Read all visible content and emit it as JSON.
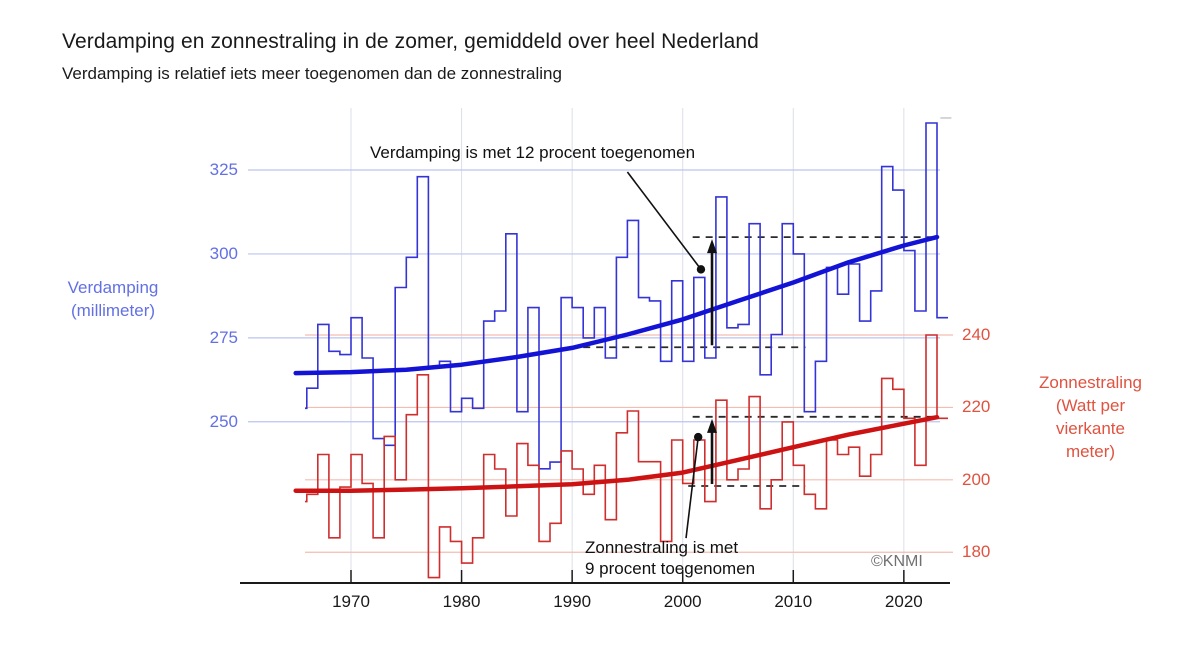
{
  "title": "Verdamping en zonnestraling in de zomer, gemiddeld over heel Nederland",
  "subtitle": "Verdamping is relatief iets meer toegenomen dan de zonnestraling",
  "watermark": "©KNMI",
  "left_axis": {
    "label_lines": [
      "Verdamping",
      "(millimeter)"
    ],
    "ticks": [
      325,
      300,
      275,
      250
    ],
    "color": "#6270e4",
    "gridline_color": "#bcc4f0"
  },
  "right_axis": {
    "label_lines": [
      "Zonnestraling",
      "(Watt per",
      "vierkante",
      "meter)"
    ],
    "ticks": [
      240,
      220,
      200,
      180
    ],
    "color": "#df5340",
    "gridline_color": "#f3bdb1"
  },
  "x_axis": {
    "ticks": [
      1970,
      1980,
      1990,
      2000,
      2010,
      2020
    ],
    "color": "#1a1a1a",
    "gridline_color": "#dcdfe8"
  },
  "annotations": {
    "verdamping_text": "Verdamping is met 12 procent toegenomen",
    "zonnestraling_line1": "Zonnestraling is met",
    "zonnestraling_line2": "9 procent toegenomen"
  },
  "chart_data": {
    "type": "line",
    "subtype": "step-series-with-smoothed-trend",
    "start_year": 1965,
    "end_year": 2023,
    "left_ylabel": "Verdamping (millimeter)",
    "right_ylabel": "Zonnestraling (Watt per vierkante meter)",
    "left_ylim": [
      236,
      342
    ],
    "right_ylim": [
      170,
      245
    ],
    "grid": true,
    "series": [
      {
        "name": "verdamping-jaarlijks",
        "axis": "left",
        "style": "step",
        "color": "#3434d6",
        "width": 1.6,
        "values": [
          254,
          260,
          279,
          271,
          270,
          281,
          269,
          245,
          243,
          290,
          299,
          323,
          266,
          268,
          253,
          257,
          254,
          280,
          283,
          306,
          253,
          284,
          236,
          238,
          287,
          284,
          275,
          284,
          269,
          299,
          310,
          287,
          286,
          268,
          292,
          268,
          293,
          269,
          317,
          278,
          279,
          309,
          264,
          276,
          309,
          300,
          253,
          268,
          296,
          288,
          297,
          280,
          289,
          326,
          319,
          301,
          283,
          339,
          281
        ]
      },
      {
        "name": "verdamping-trend",
        "axis": "left",
        "style": "smooth",
        "color": "#1313d6",
        "width": 4.5,
        "points": [
          [
            1965,
            264.5
          ],
          [
            1970,
            264.8
          ],
          [
            1975,
            265.5
          ],
          [
            1980,
            267
          ],
          [
            1985,
            269.3
          ],
          [
            1990,
            272
          ],
          [
            1995,
            276
          ],
          [
            2000,
            280.5
          ],
          [
            2005,
            286
          ],
          [
            2010,
            291.5
          ],
          [
            2015,
            297.5
          ],
          [
            2020,
            302.5
          ],
          [
            2023,
            305
          ]
        ]
      },
      {
        "name": "zonnestraling-jaarlijks",
        "axis": "right",
        "style": "step",
        "color": "#cf2e2e",
        "width": 1.6,
        "values": [
          194,
          196,
          207,
          184,
          198,
          207,
          199,
          184,
          212,
          200,
          218,
          229,
          173,
          187,
          183,
          177,
          184,
          207,
          203,
          190,
          210,
          204,
          183,
          188,
          208,
          203,
          196,
          204,
          189,
          213,
          219,
          205,
          205,
          183,
          211,
          199,
          211,
          194,
          222,
          200,
          203,
          223,
          192,
          200,
          216,
          204,
          196,
          192,
          211,
          207,
          209,
          201,
          207,
          228,
          225,
          217,
          204,
          240,
          217
        ]
      },
      {
        "name": "zonnestraling-trend",
        "axis": "right",
        "style": "smooth",
        "color": "#cc1212",
        "width": 4.5,
        "points": [
          [
            1965,
            197
          ],
          [
            1970,
            197
          ],
          [
            1975,
            197.3
          ],
          [
            1980,
            197.7
          ],
          [
            1985,
            198.2
          ],
          [
            1990,
            198.8
          ],
          [
            1995,
            200
          ],
          [
            2000,
            202
          ],
          [
            2005,
            205.5
          ],
          [
            2010,
            209
          ],
          [
            2015,
            212.5
          ],
          [
            2020,
            215.5
          ],
          [
            2023,
            217.3
          ]
        ]
      }
    ],
    "dashed_reference_lines": [
      {
        "axis": "left",
        "value": 272.2,
        "from_year": 1991.0,
        "to_year": 2011.1
      },
      {
        "axis": "left",
        "value": 305.0,
        "from_year": 2000.9,
        "to_year": 2022.7
      },
      {
        "axis": "right",
        "value": 198.3,
        "from_year": 2000.5,
        "to_year": 2011.1
      },
      {
        "axis": "right",
        "value": 217.4,
        "from_year": 2000.9,
        "to_year": 2023.0
      }
    ],
    "arrows": [
      {
        "axis": "left",
        "x_year": 2002.65,
        "from_value": 272.2,
        "to_value": 305.0
      },
      {
        "axis": "right",
        "x_year": 2002.65,
        "from_value": 198.3,
        "to_value": 217.4
      }
    ],
    "callouts": [
      {
        "axis": "left",
        "line_from": [
          1995.0,
          324.4
        ],
        "dot_at": [
          2001.65,
          295.4
        ]
      },
      {
        "axis": "right",
        "line_from": [
          2000.3,
          183.9
        ],
        "dot_at": [
          2001.4,
          211.8
        ]
      }
    ],
    "gray_provisional_mark": {
      "axis": "left",
      "value": 340.5,
      "from_year": 2023.3,
      "to_year": 2024.3
    }
  }
}
